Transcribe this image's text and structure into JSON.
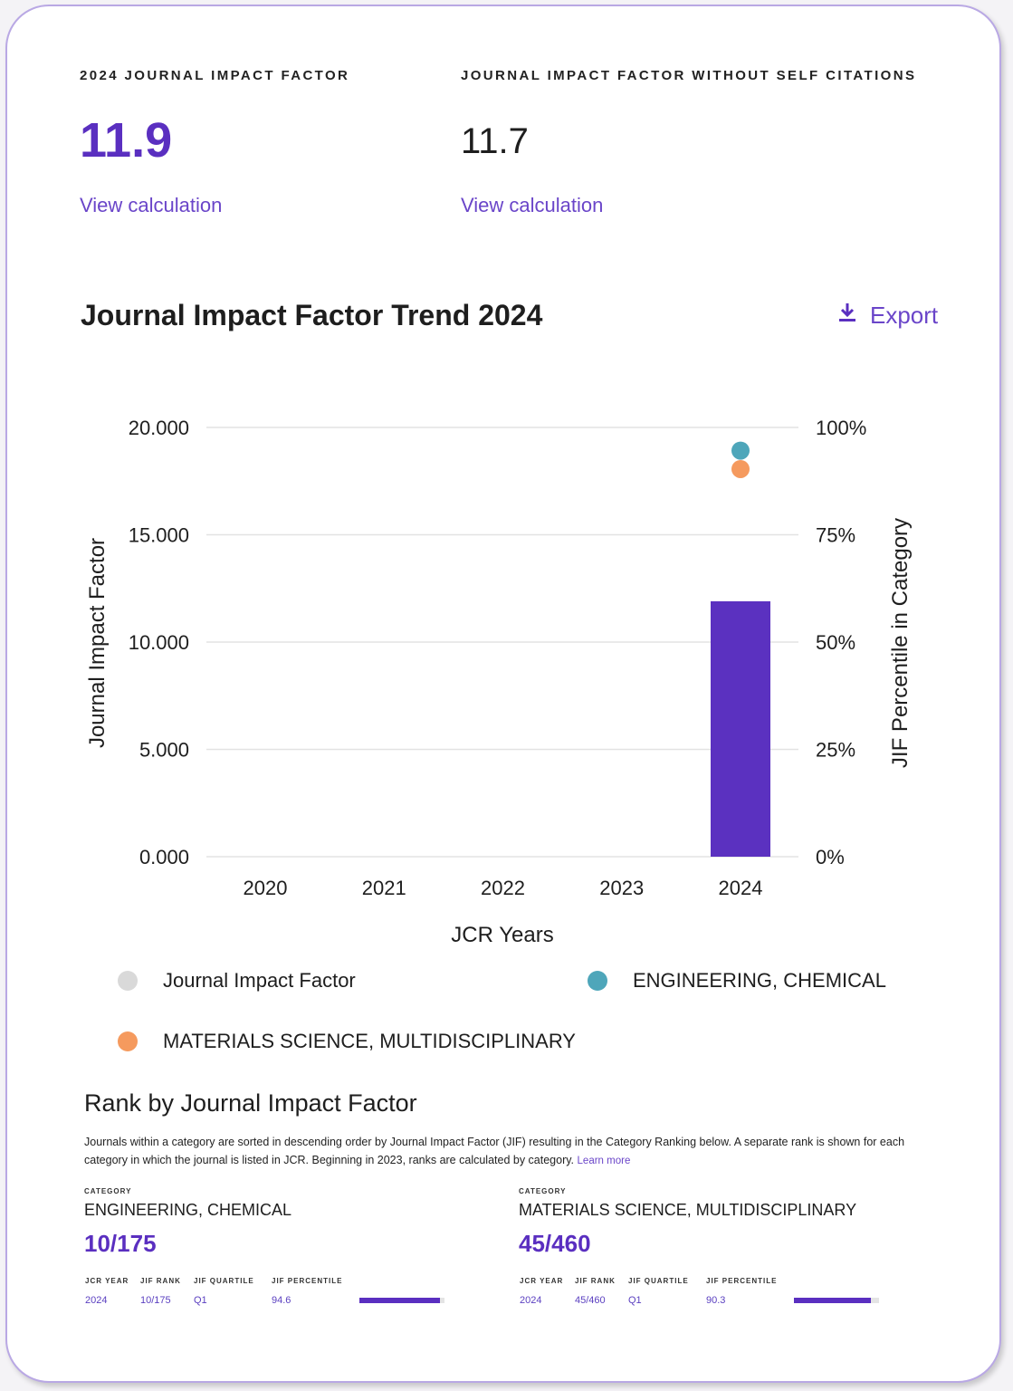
{
  "metrics": {
    "jif": {
      "label": "2024 JOURNAL IMPACT FACTOR",
      "value": "11.9",
      "link": "View calculation"
    },
    "jif_no_self": {
      "label": "JOURNAL IMPACT FACTOR WITHOUT SELF CITATIONS",
      "value": "11.7",
      "link": "View calculation"
    }
  },
  "trend": {
    "title": "Journal Impact Factor Trend 2024",
    "export_label": "Export"
  },
  "chart_data": {
    "type": "bar",
    "title": "Journal Impact Factor Trend 2024",
    "categories": [
      "2020",
      "2021",
      "2022",
      "2023",
      "2024"
    ],
    "xlabel": "JCR Years",
    "ylabel": "Journal Impact Factor",
    "y2label": "JIF Percentile in Category",
    "ylim": [
      0,
      20
    ],
    "y2lim": [
      0,
      100
    ],
    "yticks": [
      "0.000",
      "5.000",
      "10.000",
      "15.000",
      "20.000"
    ],
    "y2ticks": [
      "0%",
      "25%",
      "50%",
      "75%",
      "100%"
    ],
    "grid": true,
    "series": [
      {
        "name": "Journal Impact Factor",
        "kind": "bar",
        "axis": "left",
        "color": "#5b31c0",
        "legend_color": "#d9d9d9",
        "values": [
          null,
          null,
          null,
          null,
          11.9
        ]
      },
      {
        "name": "ENGINEERING, CHEMICAL",
        "kind": "scatter",
        "axis": "right",
        "color": "#4ea6ba",
        "values": [
          null,
          null,
          null,
          null,
          94.6
        ]
      },
      {
        "name": "MATERIALS SCIENCE, MULTIDISCIPLINARY",
        "kind": "scatter",
        "axis": "right",
        "color": "#f59a5e",
        "values": [
          null,
          null,
          null,
          null,
          90.3
        ]
      }
    ]
  },
  "legend": [
    {
      "label": "Journal Impact Factor",
      "color": "#d9d9d9"
    },
    {
      "label": "ENGINEERING, CHEMICAL",
      "color": "#4ea6ba"
    },
    {
      "label": "MATERIALS SCIENCE, MULTIDISCIPLINARY",
      "color": "#f59a5e"
    }
  ],
  "rank": {
    "title": "Rank by Journal Impact Factor",
    "description": "Journals within a category are sorted in descending order by Journal Impact Factor (JIF) resulting in the Category Ranking below. A separate rank is shown for each category in which the journal is listed in JCR. Beginning in 2023, ranks are calculated by category.",
    "learn_more": "Learn more",
    "categories": [
      {
        "overline": "CATEGORY",
        "name": "ENGINEERING, CHEMICAL",
        "rank": "10/175",
        "headers": [
          "JCR YEAR",
          "JIF RANK",
          "JIF QUARTILE",
          "JIF PERCENTILE"
        ],
        "row": {
          "year": "2024",
          "rank": "10/175",
          "quartile": "Q1",
          "percentile": "94.6",
          "percentile_value": 94.6
        }
      },
      {
        "overline": "CATEGORY",
        "name": "MATERIALS SCIENCE, MULTIDISCIPLINARY",
        "rank": "45/460",
        "headers": [
          "JCR YEAR",
          "JIF RANK",
          "JIF QUARTILE",
          "JIF PERCENTILE"
        ],
        "row": {
          "year": "2024",
          "rank": "45/460",
          "quartile": "Q1",
          "percentile": "90.3",
          "percentile_value": 90.3
        }
      }
    ]
  }
}
